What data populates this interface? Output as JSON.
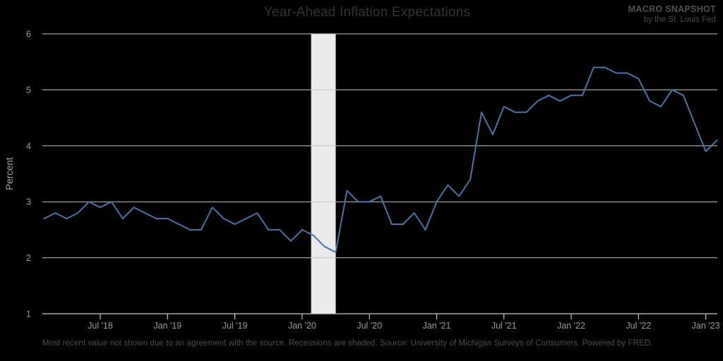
{
  "header": {
    "title": "Year-Ahead Inflation Expectations",
    "brand": "MACRO SNAPSHOT",
    "brand_sub": "by the St. Louis Fed"
  },
  "footer": {
    "note": "Most recent value not shown due to an agreement with the source. Recessions are shaded. Source: University of Michigan Surveys of Consumers. Powered by FRED."
  },
  "chart_data": {
    "type": "line",
    "title": "Year-Ahead Inflation Expectations",
    "xlabel": "",
    "ylabel": "Percent",
    "ylim": [
      1,
      6
    ],
    "yticks": [
      1,
      2,
      3,
      4,
      5,
      6
    ],
    "grid": true,
    "legend": false,
    "months": [
      "Feb 2018",
      "Mar 2018",
      "Apr 2018",
      "May 2018",
      "Jun 2018",
      "Jul 2018",
      "Aug 2018",
      "Sep 2018",
      "Oct 2018",
      "Nov 2018",
      "Dec 2018",
      "Jan 2019",
      "Feb 2019",
      "Mar 2019",
      "Apr 2019",
      "May 2019",
      "Jun 2019",
      "Jul 2019",
      "Aug 2019",
      "Sep 2019",
      "Oct 2019",
      "Nov 2019",
      "Dec 2019",
      "Jan 2020",
      "Feb 2020",
      "Mar 2020",
      "Apr 2020",
      "May 2020",
      "Jun 2020",
      "Jul 2020",
      "Aug 2020",
      "Sep 2020",
      "Oct 2020",
      "Nov 2020",
      "Dec 2020",
      "Jan 2021",
      "Feb 2021",
      "Mar 2021",
      "Apr 2021",
      "May 2021",
      "Jun 2021",
      "Jul 2021",
      "Aug 2021",
      "Sep 2021",
      "Oct 2021",
      "Nov 2021",
      "Dec 2021",
      "Jan 2022",
      "Feb 2022",
      "Mar 2022",
      "Apr 2022",
      "May 2022",
      "Jun 2022",
      "Jul 2022",
      "Aug 2022",
      "Sep 2022",
      "Oct 2022",
      "Nov 2022",
      "Dec 2022",
      "Jan 2023",
      "Feb 2023"
    ],
    "series": [
      {
        "name": "Year-ahead inflation expectations (percent)",
        "color": "#4a73a8",
        "values": [
          2.7,
          2.8,
          2.7,
          2.8,
          3.0,
          2.9,
          3.0,
          2.7,
          2.9,
          2.8,
          2.7,
          2.7,
          2.6,
          2.5,
          2.5,
          2.9,
          2.7,
          2.6,
          2.7,
          2.8,
          2.5,
          2.5,
          2.3,
          2.5,
          2.4,
          2.2,
          2.1,
          3.2,
          3.0,
          3.0,
          3.1,
          2.6,
          2.6,
          2.8,
          2.5,
          3.0,
          3.3,
          3.1,
          3.4,
          4.6,
          4.2,
          4.7,
          4.6,
          4.6,
          4.8,
          4.9,
          4.8,
          4.9,
          4.9,
          5.4,
          5.4,
          5.3,
          5.3,
          5.2,
          4.8,
          4.7,
          5.0,
          4.9,
          4.4,
          3.9,
          4.1
        ]
      }
    ],
    "x_ticks": [
      {
        "label": "Jul '18",
        "index": 5
      },
      {
        "label": "Jan '19",
        "index": 11
      },
      {
        "label": "Jul '19",
        "index": 17
      },
      {
        "label": "Jan '20",
        "index": 23
      },
      {
        "label": "Jul '20",
        "index": 29
      },
      {
        "label": "Jan '21",
        "index": 35
      },
      {
        "label": "Jul '21",
        "index": 41
      },
      {
        "label": "Jan '22",
        "index": 47
      },
      {
        "label": "Jul '22",
        "index": 53
      },
      {
        "label": "Jan '23",
        "index": 59
      }
    ],
    "recession_bands": [
      {
        "start": "Feb 2020",
        "end": "Apr 2020"
      }
    ],
    "colors": {
      "background": "#000000",
      "line": "#4a73a8",
      "gridline": "#c6c6c6",
      "recession_band": "#ebebeb",
      "tick_label": "#9a9a9a",
      "axis_title": "#a3a3a3"
    }
  }
}
